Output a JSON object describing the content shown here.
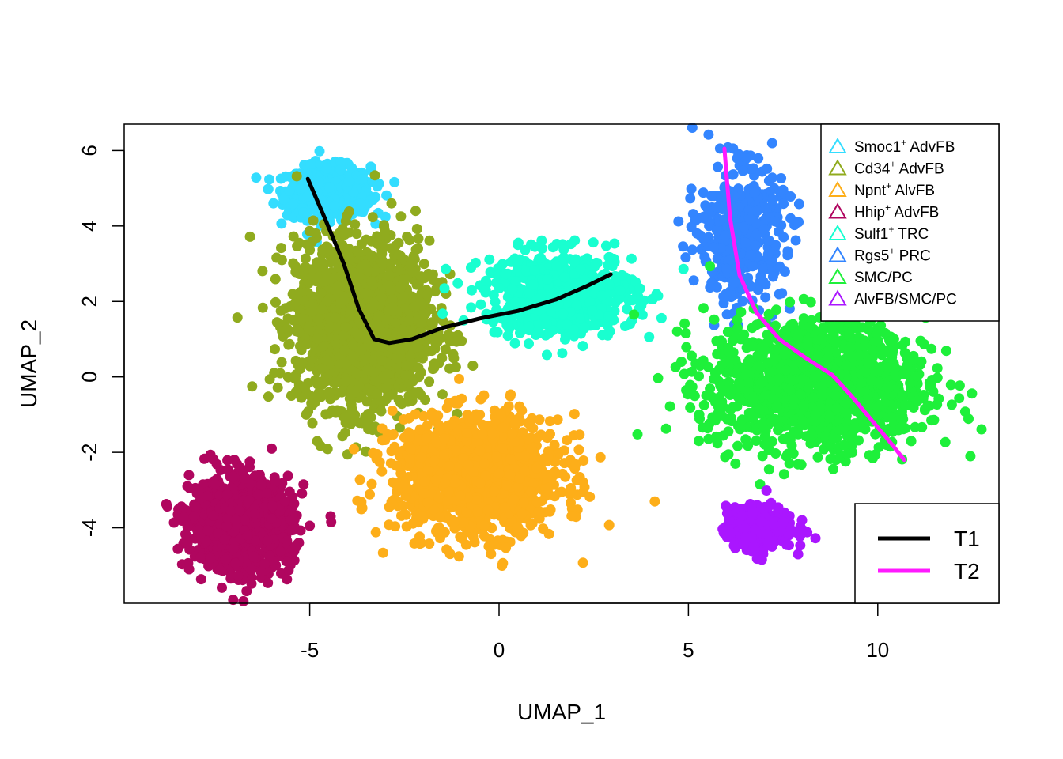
{
  "chart_data": {
    "type": "scatter",
    "title": "",
    "xlabel": "UMAP_1",
    "ylabel": "UMAP_2",
    "xlim": [
      -9.9,
      13.2
    ],
    "ylim": [
      -6.0,
      6.7
    ],
    "xticks": [
      -5,
      0,
      5,
      10
    ],
    "yticks": [
      -4,
      -2,
      0,
      2,
      4,
      6
    ],
    "xtick_labels": [
      "-5",
      "0",
      "5",
      "10"
    ],
    "ytick_labels": [
      "-4",
      "-2",
      "0",
      "2",
      "4",
      "6"
    ],
    "grid": false,
    "clusters": [
      {
        "name": "Smoc1⁺ AdvFB",
        "color": "#33ddff",
        "center": [
          -4.5,
          4.9
        ],
        "spread": [
          1.0,
          0.6
        ],
        "points": 700
      },
      {
        "name": "Cd34⁺ AdvFB",
        "color": "#90ab1e",
        "center": [
          -3.6,
          1.4
        ],
        "spread": [
          1.6,
          2.0
        ],
        "points": 1800
      },
      {
        "name": "Npnt⁺ AlvFB",
        "color": "#fdae19",
        "center": [
          -0.6,
          -2.6
        ],
        "spread": [
          2.0,
          1.4
        ],
        "points": 1300
      },
      {
        "name": "Hhip⁺ AdvFB",
        "color": "#b0065f",
        "center": [
          -6.8,
          -3.9
        ],
        "spread": [
          1.2,
          1.1
        ],
        "points": 1100
      },
      {
        "name": "Sulf1⁺ TRC",
        "color": "#19ffd0",
        "center": [
          1.6,
          2.2
        ],
        "spread": [
          1.8,
          1.0
        ],
        "points": 700
      },
      {
        "name": "Rgs5⁺ PRC",
        "color": "#3385ff",
        "center": [
          6.4,
          3.8
        ],
        "spread": [
          1.0,
          1.6
        ],
        "points": 450
      },
      {
        "name": "SMC/PC",
        "color": "#1ef03a",
        "center": [
          8.4,
          -0.2
        ],
        "spread": [
          2.6,
          1.6
        ],
        "points": 1300
      },
      {
        "name": "AlvFB/SMC/PC",
        "color": "#aa16ff",
        "center": [
          6.9,
          -4.0
        ],
        "spread": [
          0.8,
          0.5
        ],
        "points": 400
      }
    ],
    "curves": [
      {
        "name": "T1",
        "color": "#000000",
        "x": [
          -5.05,
          -4.6,
          -4.1,
          -3.7,
          -3.3,
          -2.9,
          -2.3,
          -1.5,
          -0.5,
          0.5,
          1.5,
          2.3,
          2.95
        ],
        "y": [
          5.25,
          4.2,
          3.0,
          1.8,
          1.0,
          0.9,
          1.0,
          1.3,
          1.55,
          1.75,
          2.05,
          2.4,
          2.72
        ]
      },
      {
        "name": "T2",
        "color": "#ff19ff",
        "x": [
          5.95,
          6.1,
          6.35,
          6.8,
          7.4,
          8.1,
          8.8,
          9.3,
          9.8,
          10.3,
          10.7
        ],
        "y": [
          6.05,
          4.2,
          2.7,
          1.7,
          1.0,
          0.5,
          0.05,
          -0.5,
          -1.1,
          -1.7,
          -2.2
        ]
      }
    ]
  },
  "legend": {
    "title": "",
    "items": [
      {
        "sup_name": "Smoc1",
        "sup": "+",
        "rest": " AdvFB",
        "color": "#33ddff"
      },
      {
        "sup_name": "Cd34",
        "sup": "+",
        "rest": " AdvFB",
        "color": "#90ab1e"
      },
      {
        "sup_name": "Npnt",
        "sup": "+",
        "rest": " AlvFB",
        "color": "#fdae19"
      },
      {
        "sup_name": "Hhip",
        "sup": "+",
        "rest": " AdvFB",
        "color": "#b0065f"
      },
      {
        "sup_name": "Sulf1",
        "sup": "+",
        "rest": " TRC",
        "color": "#19ffd0"
      },
      {
        "sup_name": "Rgs5",
        "sup": "+",
        "rest": " PRC",
        "color": "#3385ff"
      },
      {
        "sup_name": "SMC/PC",
        "sup": "",
        "rest": "",
        "color": "#1ef03a"
      },
      {
        "sup_name": "AlvFB/SMC/PC",
        "sup": "",
        "rest": "",
        "color": "#aa16ff"
      }
    ]
  },
  "curve_legend": {
    "items": [
      {
        "label": "T1",
        "color": "#000000"
      },
      {
        "label": "T2",
        "color": "#ff19ff"
      }
    ]
  }
}
